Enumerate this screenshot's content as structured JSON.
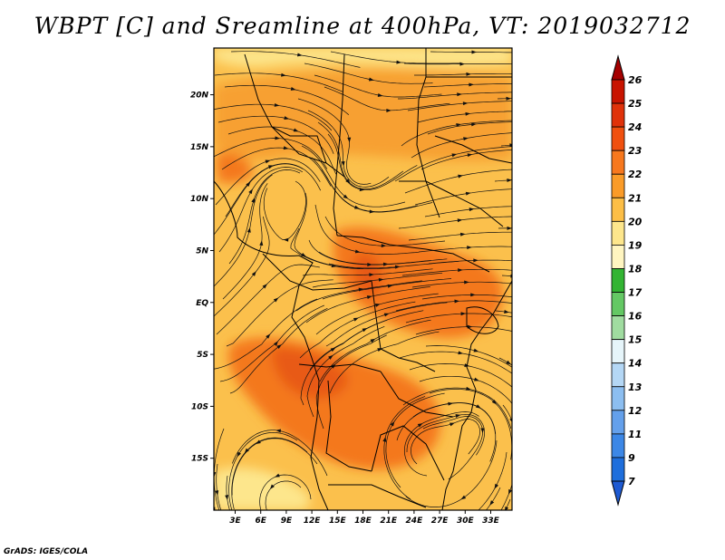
{
  "title": "WBPT [C] and Sreamline at 400hPa, VT: 2019032712",
  "footer": "GrADS: IGES/COLA",
  "map": {
    "lat_labels": [
      "20N",
      "15N",
      "10N",
      "5N",
      "EQ",
      "5S",
      "10S",
      "15S"
    ],
    "lat_values": [
      20,
      15,
      10,
      5,
      0,
      -5,
      -10,
      -15
    ],
    "lon_labels": [
      "3E",
      "6E",
      "9E",
      "12E",
      "15E",
      "18E",
      "21E",
      "24E",
      "27E",
      "30E",
      "33E"
    ],
    "lon_values": [
      3,
      6,
      9,
      12,
      15,
      18,
      21,
      24,
      27,
      30,
      33
    ],
    "lon_range": [
      0.5,
      35.5
    ],
    "lat_range": [
      -20,
      24.5
    ]
  },
  "colorbar": {
    "labels": [
      "26",
      "25",
      "24",
      "23",
      "22",
      "21",
      "20",
      "19",
      "18",
      "17",
      "16",
      "15",
      "14",
      "13",
      "12",
      "11",
      "9",
      "7"
    ],
    "colors": [
      "#a50000",
      "#c81400",
      "#e0320a",
      "#f0500f",
      "#f7781e",
      "#fa9b28",
      "#fcbe46",
      "#fde68c",
      "#fff5c0",
      "#32b432",
      "#64c864",
      "#a0dca0",
      "#e6f5fa",
      "#b4d7f5",
      "#8cbef0",
      "#64a0eb",
      "#3c87e6",
      "#1e6edc",
      "#1e5ad2"
    ]
  },
  "colors": {
    "field_base": "#fbc04c",
    "field_warm": "#f7a030",
    "field_hot": "#f4781c",
    "field_peak": "#e85a14",
    "field_pale": "#fde68c",
    "lines": "#111111"
  }
}
